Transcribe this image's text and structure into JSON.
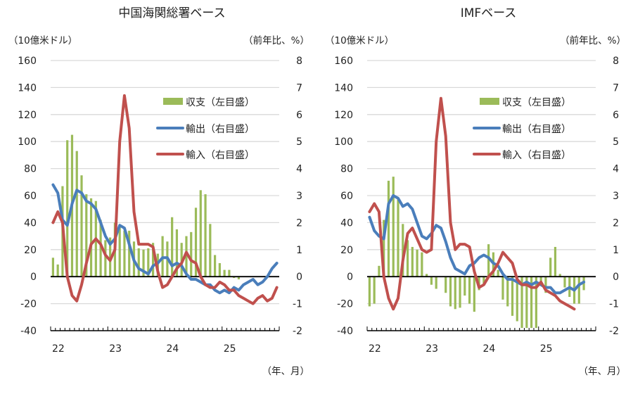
{
  "chart_data": [
    {
      "type": "bar+line",
      "title": "中国海関総署ベース",
      "left_axis_label": "（10億米ドル）",
      "right_axis_label": "（前年比、%）",
      "x_axis_label": "（年、月）",
      "left_ylim": [
        -40,
        160
      ],
      "left_ticks": [
        "160",
        "140",
        "120",
        "100",
        "80",
        "60",
        "40",
        "20",
        "0",
        "-20",
        "-40"
      ],
      "right_ylim": [
        -2,
        8
      ],
      "right_ticks": [
        "8",
        "7",
        "6",
        "5",
        "4",
        "3",
        "2",
        "1",
        "0",
        "-1",
        "-2"
      ],
      "x_tick_labels": [
        "22",
        "23",
        "24",
        "25"
      ],
      "x_start": "2022-01",
      "months": 48,
      "grid": true,
      "legend_position": "top-right",
      "series": [
        {
          "name": "収支（左目盛）",
          "type": "bar",
          "axis": "left",
          "color": "#9bbb59",
          "values": [
            14,
            9,
            67,
            101,
            105,
            93,
            75,
            61,
            58,
            56,
            42,
            27,
            29,
            40,
            37,
            34,
            34,
            26,
            21,
            20,
            21,
            25,
            17,
            30,
            26,
            44,
            35,
            25,
            30,
            33,
            51,
            64,
            61,
            39,
            16,
            10,
            5,
            5,
            -1,
            -2,
            null,
            null,
            null,
            null,
            null,
            null,
            null,
            null
          ]
        },
        {
          "name": "輸出（右目盛）",
          "type": "line",
          "axis": "right",
          "color": "#4a7ebb",
          "values": [
            3.4,
            3.1,
            2.1,
            1.9,
            2.7,
            3.2,
            3.1,
            2.8,
            2.7,
            2.5,
            2.0,
            1.5,
            1.2,
            1.4,
            1.9,
            1.8,
            1.2,
            0.6,
            0.3,
            0.2,
            0.1,
            0.4,
            0.5,
            0.7,
            0.7,
            0.4,
            0.5,
            0.4,
            0.1,
            -0.1,
            -0.1,
            -0.2,
            -0.3,
            -0.3,
            -0.5,
            -0.6,
            -0.5,
            -0.6,
            -0.4,
            -0.5,
            -0.3,
            -0.2,
            -0.1,
            -0.3,
            -0.2,
            0.0,
            0.3,
            0.5
          ]
        },
        {
          "name": "輸入（右目盛）",
          "type": "line",
          "axis": "right",
          "color": "#c0504d",
          "values": [
            2.0,
            2.4,
            2.0,
            0.0,
            -0.7,
            -0.9,
            -0.3,
            0.5,
            1.2,
            1.4,
            1.2,
            0.8,
            0.6,
            1.0,
            5.0,
            6.7,
            5.5,
            2.4,
            1.2,
            1.2,
            1.2,
            1.1,
            0.2,
            -0.4,
            -0.3,
            0.0,
            0.3,
            0.5,
            0.9,
            0.6,
            0.5,
            0.0,
            -0.3,
            -0.4,
            -0.4,
            -0.2,
            -0.3,
            -0.5,
            -0.5,
            -0.7,
            -0.8,
            -0.9,
            -1.0,
            -0.8,
            -0.7,
            -0.9,
            -0.8,
            -0.4
          ]
        }
      ]
    },
    {
      "type": "bar+line",
      "title": "IMFベース",
      "left_axis_label": "（10億米ドル）",
      "right_axis_label": "（前年比、%）",
      "x_axis_label": "（年、月）",
      "left_ylim": [
        -40,
        160
      ],
      "left_ticks": [
        "160",
        "140",
        "120",
        "100",
        "80",
        "60",
        "40",
        "20",
        "0",
        "-20",
        "-40"
      ],
      "right_ylim": [
        -2,
        8
      ],
      "right_ticks": [
        "8",
        "7",
        "6",
        "5",
        "4",
        "3",
        "2",
        "1",
        "0",
        "-1",
        "-2"
      ],
      "x_tick_labels": [
        "22",
        "23",
        "24",
        "25"
      ],
      "x_start": "2022-01",
      "months": 48,
      "grid": true,
      "legend_position": "top-right",
      "series": [
        {
          "name": "収支（左目盛）",
          "type": "bar",
          "axis": "left",
          "color": "#9bbb59",
          "values": [
            -22,
            -20,
            8,
            42,
            71,
            74,
            57,
            39,
            27,
            22,
            20,
            18,
            2,
            -6,
            -9,
            0,
            -12,
            -22,
            -24,
            -23,
            -14,
            -20,
            -26,
            -10,
            -5,
            24,
            18,
            5,
            -17,
            -22,
            -29,
            -33,
            -38,
            -38,
            -38,
            -38,
            -5,
            -12,
            14,
            22,
            2,
            -8,
            -15,
            -20,
            -20,
            -10,
            null,
            null
          ]
        },
        {
          "name": "輸出（右目盛）",
          "type": "line",
          "axis": "right",
          "color": "#4a7ebb",
          "values": [
            2.2,
            1.7,
            1.5,
            1.4,
            2.7,
            3.0,
            2.9,
            2.6,
            2.7,
            2.5,
            2.0,
            1.5,
            1.4,
            1.6,
            1.9,
            1.8,
            1.3,
            0.7,
            0.3,
            0.2,
            0.1,
            0.4,
            0.5,
            0.7,
            0.8,
            0.7,
            0.5,
            0.4,
            0.1,
            -0.1,
            -0.1,
            -0.2,
            -0.3,
            -0.2,
            -0.3,
            -0.2,
            -0.3,
            -0.4,
            -0.4,
            -0.6,
            -0.6,
            -0.5,
            -0.4,
            -0.5,
            -0.3,
            -0.2,
            null,
            null
          ]
        },
        {
          "name": "輸入（右目盛）",
          "type": "line",
          "axis": "right",
          "color": "#c0504d",
          "values": [
            2.4,
            2.7,
            2.4,
            0.0,
            -0.8,
            -1.2,
            -0.8,
            0.6,
            1.6,
            1.8,
            1.4,
            1.0,
            0.9,
            1.0,
            5.0,
            6.6,
            5.2,
            2.0,
            1.0,
            1.2,
            1.2,
            1.1,
            0.2,
            -0.4,
            -0.3,
            0.0,
            0.2,
            0.5,
            0.9,
            0.7,
            0.5,
            -0.1,
            -0.3,
            -0.3,
            -0.4,
            -0.4,
            -0.2,
            -0.5,
            -0.6,
            -0.7,
            -0.9,
            -1.0,
            -1.1,
            -1.2,
            null,
            null,
            null,
            null
          ]
        }
      ]
    }
  ]
}
